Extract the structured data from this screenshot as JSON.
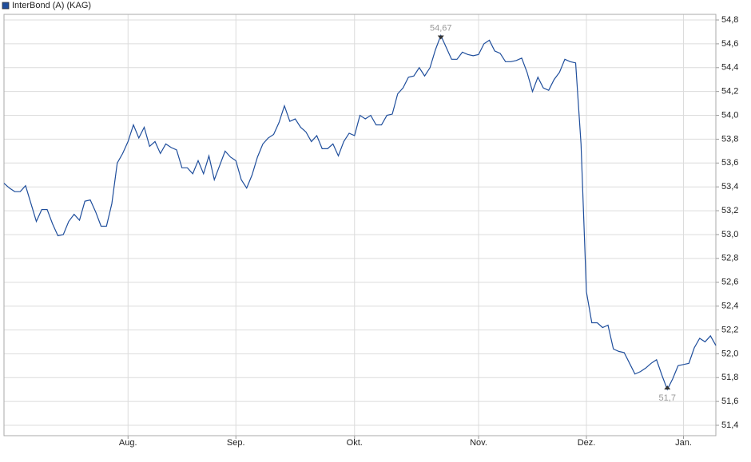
{
  "chart_data": {
    "type": "line",
    "legend": "top-left",
    "grid": true,
    "series": [
      {
        "name": "InterBond (A) (KAG)",
        "color": "#1f4e9c",
        "values": [
          53.43,
          53.39,
          53.36,
          53.36,
          53.41,
          53.26,
          53.11,
          53.21,
          53.21,
          53.09,
          52.99,
          53.0,
          53.11,
          53.17,
          53.12,
          53.28,
          53.29,
          53.19,
          53.07,
          53.07,
          53.26,
          53.6,
          53.68,
          53.78,
          53.92,
          53.81,
          53.9,
          53.74,
          53.78,
          53.68,
          53.76,
          53.73,
          53.71,
          53.56,
          53.56,
          53.51,
          53.62,
          53.51,
          53.66,
          53.46,
          53.58,
          53.7,
          53.65,
          53.62,
          53.46,
          53.39,
          53.5,
          53.65,
          53.76,
          53.81,
          53.84,
          53.94,
          54.08,
          53.95,
          53.97,
          53.9,
          53.86,
          53.78,
          53.83,
          53.72,
          53.72,
          53.76,
          53.66,
          53.78,
          53.85,
          53.83,
          54.0,
          53.97,
          54.0,
          53.92,
          53.92,
          54.0,
          54.01,
          54.18,
          54.23,
          54.32,
          54.33,
          54.4,
          54.33,
          54.4,
          54.55,
          54.67,
          54.57,
          54.47,
          54.47,
          54.53,
          54.51,
          54.5,
          54.51,
          54.6,
          54.63,
          54.54,
          54.52,
          54.45,
          54.45,
          54.46,
          54.48,
          54.36,
          54.2,
          54.32,
          54.23,
          54.21,
          54.3,
          54.36,
          54.47,
          54.45,
          54.44,
          53.76,
          52.52,
          52.26,
          52.26,
          52.22,
          52.24,
          52.04,
          52.02,
          52.01,
          51.92,
          51.83,
          51.85,
          51.88,
          51.92,
          51.95,
          51.82,
          51.7,
          51.79,
          51.9,
          51.91,
          51.92,
          52.05,
          52.13,
          52.1,
          52.15,
          52.07
        ]
      }
    ],
    "xlim": [
      0,
      132
    ],
    "xticks": [
      {
        "value": 23,
        "label": "Aug."
      },
      {
        "value": 43,
        "label": "Sep."
      },
      {
        "value": 65,
        "label": "Okt."
      },
      {
        "value": 88,
        "label": "Nov."
      },
      {
        "value": 108,
        "label": "Dez."
      },
      {
        "value": 126,
        "label": "Jan."
      }
    ],
    "ylim": [
      51.313,
      54.847
    ],
    "yticks": [
      {
        "value": 51.4,
        "label": "51,4"
      },
      {
        "value": 51.6,
        "label": "51,6"
      },
      {
        "value": 51.8,
        "label": "51,8"
      },
      {
        "value": 52.0,
        "label": "52,0"
      },
      {
        "value": 52.2,
        "label": "52,2"
      },
      {
        "value": 52.4,
        "label": "52,4"
      },
      {
        "value": 52.6,
        "label": "52,6"
      },
      {
        "value": 52.8,
        "label": "52,8"
      },
      {
        "value": 53.0,
        "label": "53,0"
      },
      {
        "value": 53.2,
        "label": "53,2"
      },
      {
        "value": 53.4,
        "label": "53,4"
      },
      {
        "value": 53.6,
        "label": "53,6"
      },
      {
        "value": 53.8,
        "label": "53,8"
      },
      {
        "value": 54.0,
        "label": "54,0"
      },
      {
        "value": 54.2,
        "label": "54,2"
      },
      {
        "value": 54.4,
        "label": "54,4"
      },
      {
        "value": 54.6,
        "label": "54,6"
      },
      {
        "value": 54.8,
        "label": "54,8"
      }
    ],
    "annotations": [
      {
        "x": 81,
        "value": 54.67,
        "label": "54,67",
        "position": "above"
      },
      {
        "x": 123,
        "value": 51.7,
        "label": "51,7",
        "position": "below"
      }
    ]
  }
}
